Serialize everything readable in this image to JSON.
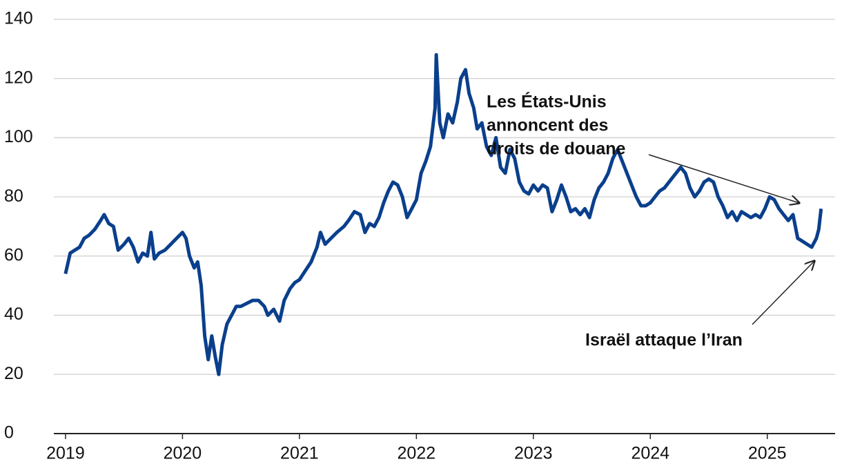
{
  "chart_data": {
    "type": "line",
    "annotations": [
      {
        "lines": [
          "Les États-Unis",
          "annoncent des",
          "droits de douane"
        ]
      },
      {
        "lines": [
          "Israël attaque l’Iran"
        ]
      }
    ],
    "x": [
      2019.0,
      2019.04,
      2019.08,
      2019.12,
      2019.16,
      2019.2,
      2019.25,
      2019.3,
      2019.33,
      2019.37,
      2019.41,
      2019.45,
      2019.5,
      2019.54,
      2019.58,
      2019.62,
      2019.66,
      2019.7,
      2019.73,
      2019.76,
      2019.8,
      2019.85,
      2019.9,
      2019.95,
      2020.0,
      2020.03,
      2020.06,
      2020.1,
      2020.13,
      2020.16,
      2020.19,
      2020.22,
      2020.25,
      2020.28,
      2020.31,
      2020.34,
      2020.38,
      2020.42,
      2020.46,
      2020.5,
      2020.55,
      2020.6,
      2020.65,
      2020.7,
      2020.73,
      2020.78,
      2020.83,
      2020.87,
      2020.92,
      2020.96,
      2021.0,
      2021.05,
      2021.1,
      2021.15,
      2021.18,
      2021.22,
      2021.27,
      2021.32,
      2021.38,
      2021.42,
      2021.47,
      2021.52,
      2021.56,
      2021.6,
      2021.64,
      2021.68,
      2021.72,
      2021.76,
      2021.8,
      2021.84,
      2021.88,
      2021.92,
      2021.96,
      2022.0,
      2022.04,
      2022.08,
      2022.12,
      2022.16,
      2022.17,
      2022.2,
      2022.23,
      2022.27,
      2022.31,
      2022.35,
      2022.38,
      2022.42,
      2022.45,
      2022.49,
      2022.52,
      2022.56,
      2022.6,
      2022.64,
      2022.68,
      2022.72,
      2022.76,
      2022.8,
      2022.84,
      2022.88,
      2022.92,
      2022.96,
      2023.0,
      2023.04,
      2023.08,
      2023.12,
      2023.16,
      2023.2,
      2023.24,
      2023.28,
      2023.32,
      2023.36,
      2023.4,
      2023.44,
      2023.48,
      2023.52,
      2023.56,
      2023.6,
      2023.64,
      2023.68,
      2023.72,
      2023.76,
      2023.8,
      2023.84,
      2023.88,
      2023.92,
      2023.96,
      2024.0,
      2024.04,
      2024.08,
      2024.12,
      2024.16,
      2024.2,
      2024.26,
      2024.3,
      2024.34,
      2024.38,
      2024.42,
      2024.46,
      2024.5,
      2024.54,
      2024.58,
      2024.62,
      2024.66,
      2024.7,
      2024.74,
      2024.78,
      2024.82,
      2024.86,
      2024.9,
      2024.94,
      2024.98,
      2025.02,
      2025.06,
      2025.1,
      2025.14,
      2025.18,
      2025.22,
      2025.26,
      2025.3,
      2025.34,
      2025.38,
      2025.42,
      2025.44,
      2025.46
    ],
    "series": [
      {
        "color": "#0a3f8c",
        "values": [
          54,
          61,
          62,
          63,
          66,
          67,
          69,
          72,
          74,
          71,
          70,
          62,
          64,
          66,
          63,
          58,
          61,
          60,
          68,
          59,
          61,
          62,
          64,
          66,
          68,
          66,
          60,
          56,
          58,
          50,
          33,
          25,
          33,
          26,
          20,
          30,
          37,
          40,
          43,
          43,
          44,
          45,
          45,
          43,
          40,
          42,
          38,
          45,
          49,
          51,
          52,
          55,
          58,
          63,
          68,
          64,
          66,
          68,
          70,
          72,
          75,
          74,
          68,
          71,
          70,
          73,
          78,
          82,
          85,
          84,
          80,
          73,
          76,
          79,
          88,
          92,
          97,
          110,
          128,
          105,
          100,
          108,
          105,
          112,
          120,
          123,
          115,
          110,
          103,
          105,
          97,
          94,
          100,
          90,
          88,
          96,
          93,
          85,
          82,
          81,
          84,
          82,
          84,
          83,
          75,
          79,
          84,
          80,
          75,
          76,
          74,
          76,
          73,
          79,
          83,
          85,
          88,
          93,
          96,
          92,
          88,
          84,
          80,
          77,
          77,
          78,
          80,
          82,
          83,
          85,
          87,
          90,
          88,
          83,
          80,
          82,
          85,
          86,
          85,
          80,
          77,
          73,
          75,
          72,
          75,
          74,
          73,
          74,
          73,
          76,
          80,
          79,
          76,
          74,
          72,
          74,
          66,
          65,
          64,
          63,
          66,
          69,
          76
        ]
      }
    ],
    "xlim": [
      2018.9,
      2025.58
    ],
    "xticks": [
      2019,
      2020,
      2021,
      2022,
      2023,
      2024,
      2025
    ],
    "ylim": [
      0,
      140
    ],
    "yticks": [
      0,
      20,
      40,
      60,
      80,
      100,
      120,
      140
    ],
    "grid": true
  }
}
